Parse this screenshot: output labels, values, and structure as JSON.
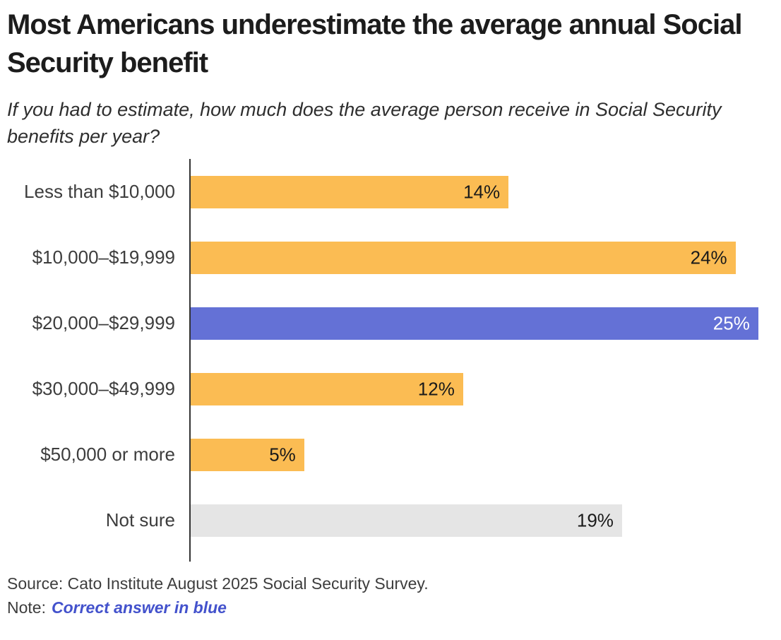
{
  "chart_data": {
    "type": "bar",
    "orientation": "horizontal",
    "title": "Most Americans underestimate the average annual Social Security benefit",
    "subtitle": "If you had to estimate, how much does the average person receive in Social Security benefits per year?",
    "xlabel": "",
    "ylabel": "",
    "xlim": [
      0,
      26
    ],
    "grid": false,
    "legend": "none",
    "value_suffix": "%",
    "categories": [
      "Less than $10,000",
      "$10,000–$19,999",
      "$20,000–$29,999",
      "$30,000–$49,999",
      "$50,000 or more",
      "Not sure"
    ],
    "values": [
      14,
      24,
      25,
      12,
      5,
      19
    ],
    "rows": [
      {
        "label": "Less than $10,000",
        "value": 14,
        "value_label": "14%",
        "color": "#FBBC53",
        "value_text_color": "#1a1a1a",
        "highlight": false
      },
      {
        "label": "$10,000–$19,999",
        "value": 24,
        "value_label": "24%",
        "color": "#FBBC53",
        "value_text_color": "#1a1a1a",
        "highlight": false
      },
      {
        "label": "$20,000–$29,999",
        "value": 25,
        "value_label": "25%",
        "color": "#6471D6",
        "value_text_color": "#ffffff",
        "highlight": true
      },
      {
        "label": "$30,000–$49,999",
        "value": 12,
        "value_label": "12%",
        "color": "#FBBC53",
        "value_text_color": "#1a1a1a",
        "highlight": false
      },
      {
        "label": "$50,000 or more",
        "value": 5,
        "value_label": "5%",
        "color": "#FBBC53",
        "value_text_color": "#1a1a1a",
        "highlight": false
      },
      {
        "label": "Not sure",
        "value": 19,
        "value_label": "19%",
        "color": "#E5E5E5",
        "value_text_color": "#1a1a1a",
        "highlight": false
      }
    ],
    "colors": {
      "default_bar": "#FBBC53",
      "highlight_bar": "#6471D6",
      "not_sure_bar": "#E5E5E5",
      "axis": "#333333"
    }
  },
  "footer": {
    "source": "Source: Cato Institute August 2025 Social Security Survey.",
    "note_prefix": "Note:",
    "note_highlight": "Correct answer in blue",
    "note_highlight_color": "#4352CC"
  }
}
